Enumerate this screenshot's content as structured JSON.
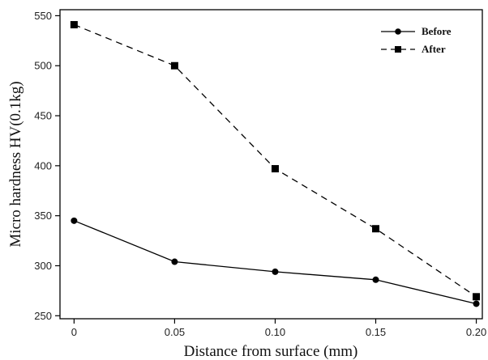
{
  "chart_data": {
    "type": "line",
    "xlabel": "Distance from surface (mm)",
    "ylabel": "Micro hardness HV(0.1kg)",
    "x_ticks": [
      "0",
      "0.05",
      "0.10",
      "0.15",
      "0.20"
    ],
    "y_ticks": [
      "250",
      "300",
      "350",
      "400",
      "450",
      "500",
      "550"
    ],
    "xlim": [
      -0.007,
      0.203
    ],
    "ylim": [
      247,
      556
    ],
    "legend_position": "top-right",
    "series": [
      {
        "name": "Before",
        "marker": "circle",
        "line_style": "solid",
        "color": "#000000",
        "x": [
          0,
          0.05,
          0.1,
          0.15,
          0.2
        ],
        "y": [
          345,
          304,
          294,
          286,
          262
        ]
      },
      {
        "name": "After",
        "marker": "square",
        "line_style": "dashed",
        "color": "#000000",
        "x": [
          0,
          0.05,
          0.1,
          0.15,
          0.2
        ],
        "y": [
          541,
          500,
          397,
          337,
          269
        ]
      }
    ]
  }
}
